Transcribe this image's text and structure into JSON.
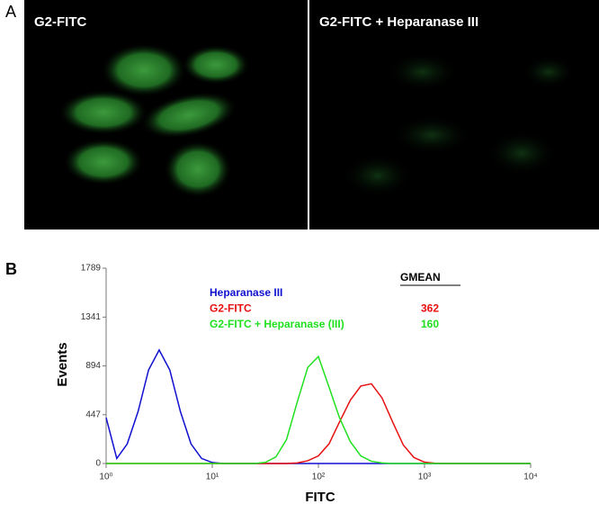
{
  "panel_labels": [
    "A",
    "B"
  ],
  "images": [
    {
      "label": "G2-FITC"
    },
    {
      "label": "G2-FITC + Heparanase III"
    }
  ],
  "chart_data": {
    "type": "line",
    "x_label": "FITC",
    "y_label": "Events",
    "x": [
      1,
      1.26,
      1.58,
      2,
      2.51,
      3.16,
      3.98,
      5.01,
      6.31,
      7.94,
      10,
      12.6,
      15.8,
      20,
      25.1,
      31.6,
      39.8,
      50.1,
      63.1,
      79.4,
      100,
      126,
      158,
      200,
      251,
      316,
      398,
      501,
      631,
      794,
      1000,
      1259,
      1585,
      10000
    ],
    "x_log": true,
    "xlim": [
      1,
      10000
    ],
    "xticks": [
      {
        "value": 1,
        "label": "10⁰"
      },
      {
        "value": 10,
        "label": "10¹"
      },
      {
        "value": 100,
        "label": "10²"
      },
      {
        "value": 1000,
        "label": "10³"
      },
      {
        "value": 10000,
        "label": "10⁴"
      }
    ],
    "ylim": [
      0,
      1789
    ],
    "yticks": [
      0,
      447,
      894,
      1341,
      1789
    ],
    "legend_header": "GMEAN",
    "series": [
      {
        "name": "Heparanase III",
        "color": "#1010d0",
        "values": [
          420,
          46,
          179,
          476,
          856,
          1040,
          856,
          476,
          179,
          46,
          9,
          0,
          0,
          0,
          0,
          0,
          0,
          0,
          0,
          0,
          0,
          0,
          0,
          0,
          0,
          0,
          0,
          0,
          0,
          0,
          0,
          0,
          0,
          0
        ]
      },
      {
        "name": "G2-FITC",
        "color": "#e81010",
        "gmean": 362,
        "values": [
          0,
          0,
          0,
          0,
          0,
          0,
          0,
          0,
          0,
          0,
          0,
          0,
          0,
          0,
          0,
          0,
          0,
          0,
          5,
          25,
          70,
          180,
          380,
          580,
          710,
          730,
          600,
          380,
          170,
          55,
          12,
          2,
          0,
          0
        ]
      },
      {
        "name": "G2-FITC + Heparanase (III)",
        "color": "#20e020",
        "gmean": 160,
        "values": [
          0,
          0,
          0,
          0,
          0,
          0,
          0,
          0,
          0,
          0,
          0,
          0,
          0,
          0,
          0,
          10,
          60,
          220,
          560,
          880,
          980,
          700,
          420,
          200,
          70,
          20,
          5,
          0,
          0,
          0,
          0,
          0,
          0,
          0
        ]
      }
    ]
  }
}
